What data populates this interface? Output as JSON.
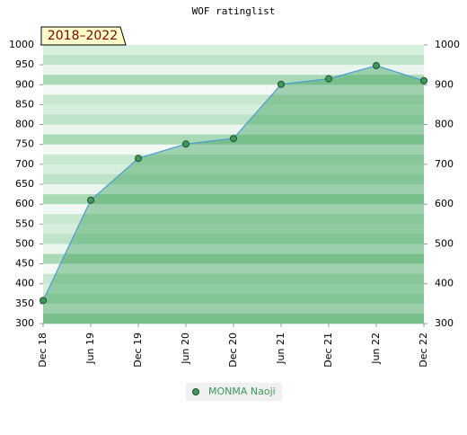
{
  "chart_data": {
    "type": "area",
    "title": "WOF ratinglist",
    "annotation": "2018–2022",
    "categories": [
      "Dec 18",
      "Jun 19",
      "Dec 19",
      "Jun 20",
      "Dec 20",
      "Jun 21",
      "Dec 21",
      "Jun 22",
      "Dec 22"
    ],
    "series": [
      {
        "name": "MONMA Naoji",
        "color": "#4a9ed6",
        "values": [
          358,
          610,
          715,
          751,
          765,
          901,
          915,
          948,
          910
        ]
      }
    ],
    "ylim": [
      300,
      1000
    ],
    "yticks": [
      300,
      350,
      400,
      450,
      500,
      550,
      600,
      650,
      700,
      750,
      800,
      850,
      900,
      950,
      1000
    ],
    "y2lim": [
      300,
      1000
    ],
    "y2ticks": [
      300,
      400,
      500,
      600,
      700,
      800,
      900,
      1000
    ]
  }
}
